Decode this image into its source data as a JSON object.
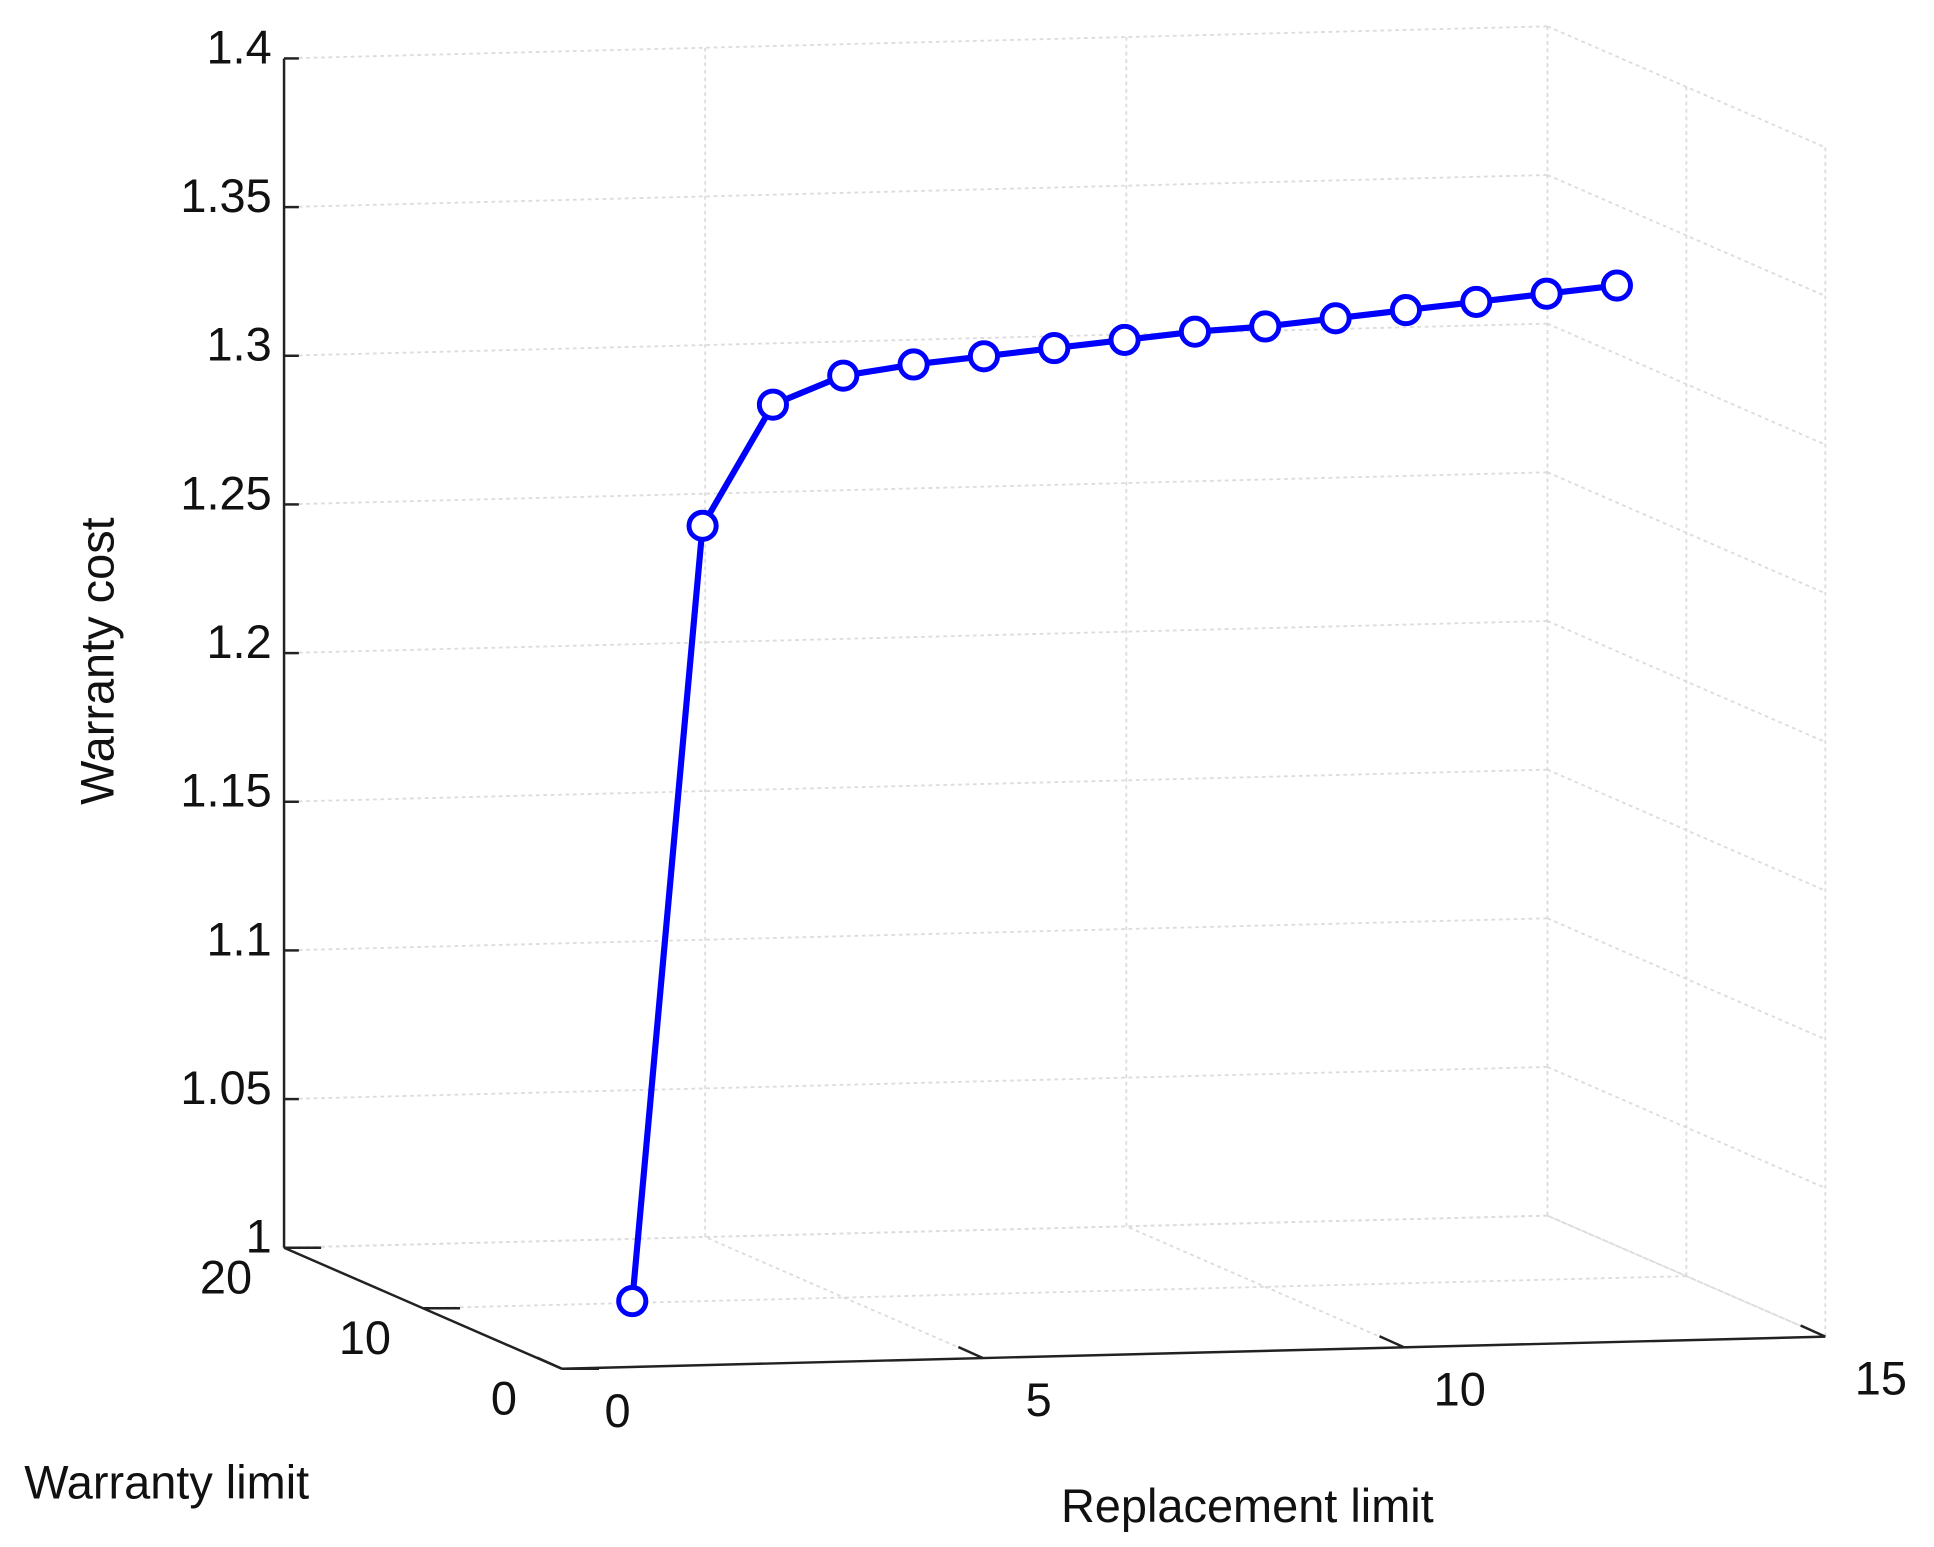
{
  "chart_data": {
    "type": "line3d",
    "xlabel": "Replacement limit",
    "ylabel": "Warranty limit",
    "zlabel": "Warranty cost",
    "xlim": [
      0,
      15
    ],
    "ylim": [
      0,
      20
    ],
    "zlim": [
      1,
      1.4
    ],
    "xticks": [
      0,
      5,
      10,
      15
    ],
    "yticks": [
      0,
      10,
      20
    ],
    "zticks": [
      1,
      1.05,
      1.1,
      1.15,
      1.2,
      1.25,
      1.3,
      1.35,
      1.4
    ],
    "grid": true,
    "series": [
      {
        "color": "#0000ff",
        "x": [
          1,
          2,
          3,
          4,
          5,
          6,
          7,
          8,
          9,
          10,
          11,
          12,
          13,
          14,
          15
        ],
        "y": [
          1,
          2,
          3,
          4,
          5,
          6,
          7,
          8,
          9,
          10,
          11,
          12,
          13,
          14,
          15
        ],
        "z": [
          1.02,
          1.278,
          1.316,
          1.323,
          1.324,
          1.324,
          1.324,
          1.324,
          1.324,
          1.323,
          1.323,
          1.323,
          1.323,
          1.323,
          1.323
        ]
      }
    ]
  }
}
